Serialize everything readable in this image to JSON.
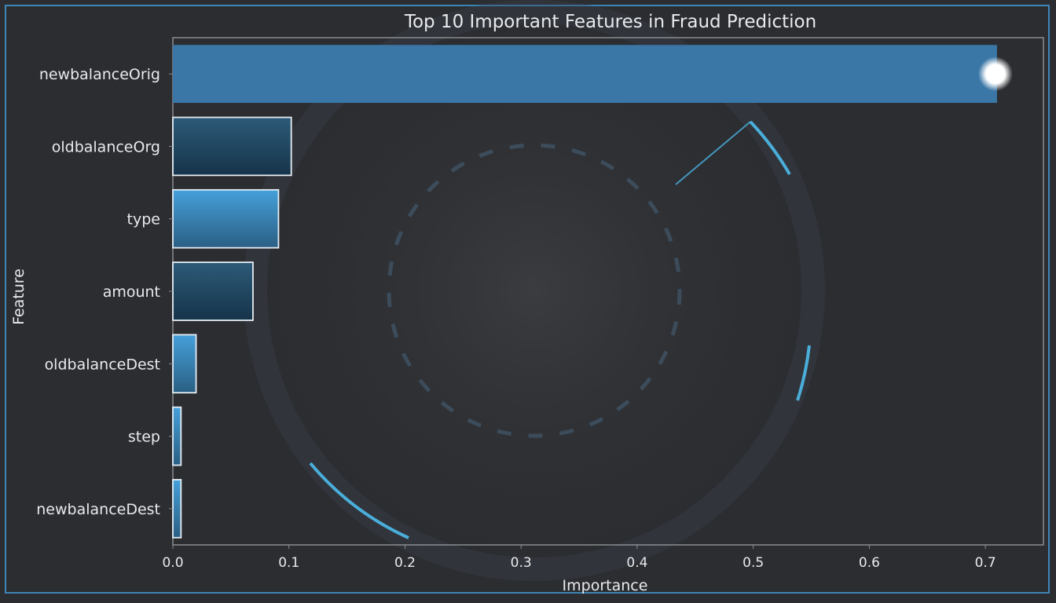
{
  "chart_data": {
    "type": "bar",
    "orientation": "horizontal",
    "title": "Top 10 Important Features in Fraud Prediction",
    "xlabel": "Importance",
    "ylabel": "Feature",
    "categories": [
      "newbalanceOrig",
      "oldbalanceOrg",
      "type",
      "amount",
      "oldbalanceDest",
      "step",
      "newbalanceDest"
    ],
    "values": [
      0.71,
      0.102,
      0.091,
      0.069,
      0.02,
      0.007,
      0.007
    ],
    "xlim": [
      0.0,
      0.75
    ],
    "xticks": [
      "0.0",
      "0.1",
      "0.2",
      "0.3",
      "0.4",
      "0.5",
      "0.6",
      "0.7"
    ],
    "grid": false,
    "legend": "none",
    "colors": {
      "background": "#2b2d31",
      "bar_top": "#3a76a6",
      "bar_light": "#3f93cc",
      "bar_dark": "#1d3f57",
      "accent_glow": "#4fc3f7",
      "frame": "#3d86b8",
      "text": "#e8eaec"
    }
  }
}
